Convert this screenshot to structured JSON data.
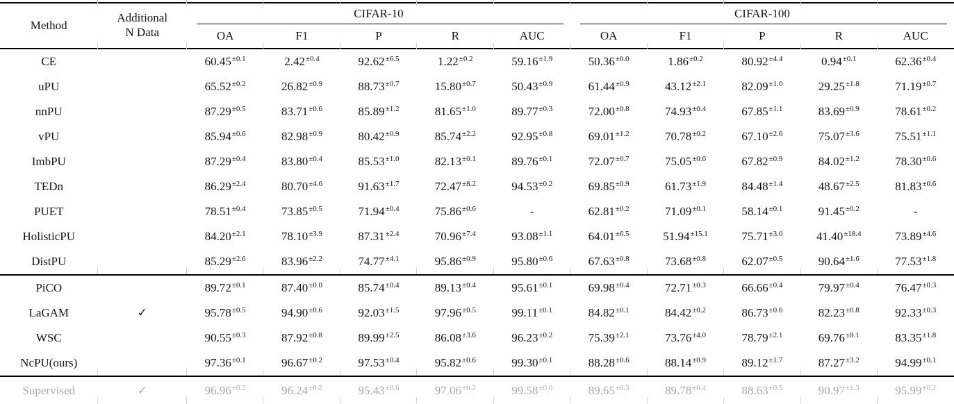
{
  "table": {
    "title_hidden": "",
    "header": {
      "method": "Method",
      "additional_line1": "Additional",
      "additional_line2": "N Data",
      "group1": "CIFAR-10",
      "group2": "CIFAR-100",
      "metrics": [
        "OA",
        "F1",
        "P",
        "R",
        "AUC"
      ]
    },
    "check_glyph": "✓",
    "colors": {
      "text": "#141414",
      "muted_row": "#a9a9a9",
      "rule": "#000000"
    },
    "rows": [
      {
        "method": "CE",
        "check": false,
        "muted": false,
        "section_start": false,
        "values": [
          "60.45±0.1",
          "2.42±0.4",
          "92.62±6.5",
          "1.22±0.2",
          "59.16±1.9",
          "50.36±0.0",
          "1.86±0.2",
          "80.92±4.4",
          "0.94±0.1",
          "62.36±0.4"
        ]
      },
      {
        "method": "uPU",
        "check": false,
        "muted": false,
        "section_start": false,
        "values": [
          "65.52±0.2",
          "26.82±0.9",
          "88.73±0.7",
          "15.80±0.7",
          "50.43±0.9",
          "61.44±0.9",
          "43.12±2.1",
          "82.09±1.0",
          "29.25±1.8",
          "71.19±0.7"
        ]
      },
      {
        "method": "nnPU",
        "check": false,
        "muted": false,
        "section_start": false,
        "values": [
          "87.29±0.5",
          "83.71±0.6",
          "85.89±1.2",
          "81.65±1.0",
          "89.77±0.3",
          "72.00±0.8",
          "74.93±0.4",
          "67.85±1.1",
          "83.69±0.9",
          "78.61±0.2"
        ]
      },
      {
        "method": "vPU",
        "check": false,
        "muted": false,
        "section_start": false,
        "values": [
          "85.94±0.6",
          "82.98±0.9",
          "80.42±0.9",
          "85.74±2.2",
          "92.95±0.8",
          "69.01±1.2",
          "70.78±0.2",
          "67.10±2.6",
          "75.07±3.6",
          "75.51±1.1"
        ]
      },
      {
        "method": "ImbPU",
        "check": false,
        "muted": false,
        "section_start": false,
        "values": [
          "87.29±0.4",
          "83.80±0.4",
          "85.53±1.0",
          "82.13±0.1",
          "89.76±0.1",
          "72.07±0.7",
          "75.05±0.6",
          "67.82±0.9",
          "84.02±1.2",
          "78.30±0.6"
        ]
      },
      {
        "method": "TEDn",
        "check": false,
        "muted": false,
        "section_start": false,
        "values": [
          "86.29±2.4",
          "80.70±4.6",
          "91.63±1.7",
          "72.47±8.2",
          "94.53±0.2",
          "69.85±0.9",
          "61.73±1.9",
          "84.48±1.4",
          "48.67±2.5",
          "81.83±0.6"
        ]
      },
      {
        "method": "PUET",
        "check": false,
        "muted": false,
        "section_start": false,
        "values": [
          "78.51±0.4",
          "73.85±0.5",
          "71.94±0.4",
          "75.86±0.6",
          "-",
          "62.81±0.2",
          "71.09±0.1",
          "58.14±0.1",
          "91.45±0.2",
          "-"
        ]
      },
      {
        "method": "HolisticPU",
        "check": false,
        "muted": false,
        "section_start": false,
        "values": [
          "84.20±2.1",
          "78.10±3.9",
          "87.31±2.4",
          "70.96±7.4",
          "93.08±1.1",
          "64.01±6.5",
          "51.94±15.1",
          "75.71±3.0",
          "41.40±18.4",
          "73.89±4.6"
        ]
      },
      {
        "method": "DistPU",
        "check": false,
        "muted": false,
        "section_start": false,
        "values": [
          "85.29±2.6",
          "83.96±2.2",
          "74.77±4.1",
          "95.86±0.9",
          "95.80±0.6",
          "67.63±0.8",
          "73.68±0.8",
          "62.07±0.5",
          "90.64±1.6",
          "77.53±1.8"
        ]
      },
      {
        "method": "PiCO",
        "check": false,
        "muted": false,
        "section_start": true,
        "values": [
          "89.72±0.1",
          "87.40±0.0",
          "85.74±0.4",
          "89.13±0.4",
          "95.61±0.1",
          "69.98±0.4",
          "72.71±0.3",
          "66.66±0.4",
          "79.97±0.4",
          "76.47±0.3"
        ]
      },
      {
        "method": "LaGAM",
        "check": true,
        "muted": false,
        "section_start": false,
        "values": [
          "95.78±0.5",
          "94.90±0.6",
          "92.03±1.5",
          "97.96±0.5",
          "99.11±0.1",
          "84.82±0.1",
          "84.42±0.2",
          "86.73±0.6",
          "82.23±0.8",
          "92.33±0.3"
        ]
      },
      {
        "method": "WSC",
        "check": false,
        "muted": false,
        "section_start": false,
        "values": [
          "90.55±0.3",
          "87.92±0.8",
          "89.99±2.5",
          "86.08±3.6",
          "96.23±0.2",
          "75.39±2.1",
          "73.76±4.0",
          "78.79±2.1",
          "69.76±8.1",
          "83.35±1.8"
        ]
      },
      {
        "method": "NcPU(ours)",
        "check": false,
        "muted": false,
        "section_start": false,
        "values": [
          "97.36±0.1",
          "96.67±0.2",
          "97.53±0.4",
          "95.82±0.6",
          "99.30±0.1",
          "88.28±0.6",
          "88.14±0.9",
          "89.12±1.7",
          "87.27±3.2",
          "94.99±0.1"
        ]
      },
      {
        "method": "Supervised",
        "check": true,
        "muted": true,
        "section_start": true,
        "values": [
          "96.96±0.2",
          "96.24±0.2",
          "95.43±0.6",
          "97.06±0.2",
          "99.58±0.0",
          "89.65±0.3",
          "89.78±0.4",
          "88.63±0.5",
          "90.97±1.3",
          "95.99±0.2"
        ]
      }
    ]
  }
}
